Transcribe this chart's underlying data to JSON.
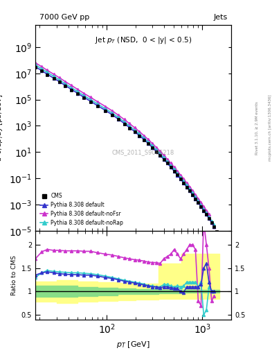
{
  "title_left": "7000 GeV pp",
  "title_right": "Jets",
  "main_title": "Jet p$_T$ (NSD,  0 < |y| < 0.5)",
  "ylabel_main": "d²σ/dp_T dy [pb/GeV]",
  "ylabel_ratio": "Ratio to CMS",
  "xlabel": "p$_T$ [GeV]",
  "watermark": "CMS_2011_S9086218",
  "right_label": "Rivet 3.1.10, ≥ 2.9M events",
  "right_label2": "mcplots.cern.ch [arXiv:1306.3436]",
  "cms_pt": [
    18,
    21,
    24,
    28,
    32,
    37,
    43,
    50,
    58,
    68,
    80,
    97,
    114,
    133,
    153,
    174,
    196,
    220,
    245,
    272,
    300,
    330,
    362,
    395,
    430,
    468,
    507,
    548,
    592,
    638,
    686,
    737,
    790,
    846,
    905,
    967,
    1032,
    1101,
    1172,
    1248,
    1327,
    1410,
    1497
  ],
  "cms_vals": [
    30000000.0,
    15000000.0,
    8000000.0,
    4000000.0,
    2200000.0,
    1100000.0,
    550000.0,
    280000.0,
    140000.0,
    70000.0,
    33000.0,
    14000.0,
    6500,
    3000,
    1400,
    680,
    340,
    170,
    85,
    43,
    22,
    11,
    5.5,
    2.8,
    1.4,
    0.7,
    0.35,
    0.18,
    0.09,
    0.045,
    0.022,
    0.011,
    0.0055,
    0.0028,
    0.0014,
    0.0007,
    0.00035,
    0.000175,
    8.5e-05,
    4e-05,
    2e-05,
    9e-06,
    4e-06
  ],
  "py_pt": [
    18,
    21,
    24,
    28,
    32,
    37,
    43,
    50,
    58,
    68,
    80,
    97,
    114,
    133,
    153,
    174,
    196,
    220,
    245,
    272,
    300,
    330,
    362,
    395,
    430,
    468,
    507,
    548,
    592,
    638,
    686,
    737,
    790,
    846,
    905,
    967,
    1032,
    1101,
    1172,
    1248,
    1327
  ],
  "py_vals": [
    32000000.0,
    16000000.0,
    8500000.0,
    4300000.0,
    2350000.0,
    1180000.0,
    590000.0,
    295000.0,
    148000.0,
    74000.0,
    35000.0,
    15000.0,
    7000,
    3200,
    1500,
    720,
    360,
    180,
    90,
    45,
    22.5,
    11.2,
    5.6,
    2.8,
    1.4,
    0.7,
    0.35,
    0.175,
    0.088,
    0.044,
    0.022,
    0.011,
    0.0055,
    0.0028,
    0.0014,
    0.0007,
    0.00035,
    0.000175,
    8.5e-05,
    4.2e-05,
    2.1e-05
  ],
  "py_color": "#3333cc",
  "py_nofsr_pt": [
    18,
    21,
    24,
    28,
    32,
    37,
    43,
    50,
    58,
    68,
    80,
    97,
    114,
    133,
    153,
    174,
    196,
    220,
    245,
    272,
    300,
    330,
    362,
    395,
    430,
    468,
    507,
    548,
    592,
    638,
    686,
    737,
    790,
    846,
    905,
    967,
    1032,
    1101,
    1172,
    1248,
    1327
  ],
  "py_nofsr_vals": [
    64000000.0,
    32000000.0,
    17000000.0,
    8600000.0,
    4700000.0,
    2360000.0,
    1180000.0,
    590000.0,
    296000.0,
    148000.0,
    70000.0,
    30000.0,
    14000.0,
    6400,
    3000,
    1440,
    720,
    360,
    180,
    90,
    45,
    22.5,
    11.2,
    5.6,
    2.8,
    1.4,
    0.7,
    0.35,
    0.175,
    0.088,
    0.044,
    0.022,
    0.011,
    0.0055,
    0.0028,
    0.0014,
    0.0007,
    0.00035,
    0.000175,
    4.2e-05,
    2.1e-05
  ],
  "py_nofsr_color": "#cc33cc",
  "py_norap_pt": [
    18,
    21,
    24,
    28,
    32,
    37,
    43,
    50,
    58,
    68,
    80,
    97,
    114,
    133,
    153,
    174,
    196,
    220,
    245,
    272,
    300,
    330,
    362,
    395,
    430,
    468,
    507,
    548,
    592,
    638,
    686,
    737,
    790,
    846,
    905,
    967,
    1032,
    1101,
    1172,
    1248,
    1327
  ],
  "py_norap_vals": [
    45000000.0,
    22000000.0,
    12000000.0,
    6000000.0,
    3200000.0,
    1600000.0,
    800000.0,
    400000.0,
    200000.0,
    100000.0,
    48000.0,
    20000.0,
    9500,
    4300,
    2000,
    960,
    480,
    240,
    120,
    60,
    30,
    15,
    7.5,
    3.75,
    1.875,
    0.94,
    0.47,
    0.235,
    0.118,
    0.059,
    0.03,
    0.015,
    0.0075,
    0.0038,
    0.0019,
    0.0009,
    0.00045,
    0.000225,
    0.00011,
    5.5e-05,
    2.75e-05
  ],
  "py_norap_color": "#33cccc",
  "ratio_py": [
    1.35,
    1.4,
    1.42,
    1.4,
    1.38,
    1.37,
    1.36,
    1.36,
    1.35,
    1.35,
    1.33,
    1.3,
    1.28,
    1.25,
    1.22,
    1.2,
    1.18,
    1.16,
    1.14,
    1.12,
    1.1,
    1.1,
    1.08,
    1.1,
    1.1,
    1.08,
    1.07,
    1.06,
    1.0,
    0.98,
    1.1,
    1.1,
    1.1,
    1.1,
    1.1,
    1.15,
    1.5,
    1.6,
    1.2,
    1.0,
    1.0
  ],
  "ratio_py_nofsr": [
    1.7,
    1.85,
    1.9,
    1.88,
    1.88,
    1.87,
    1.87,
    1.87,
    1.86,
    1.86,
    1.83,
    1.8,
    1.78,
    1.75,
    1.72,
    1.7,
    1.68,
    1.67,
    1.65,
    1.63,
    1.62,
    1.62,
    1.6,
    1.7,
    1.75,
    1.8,
    1.9,
    1.8,
    1.7,
    1.8,
    1.9,
    2.0,
    2.0,
    1.9,
    0.8,
    0.7,
    2.5,
    2.0,
    1.5,
    0.8,
    0.9
  ],
  "ratio_py_norap": [
    1.3,
    1.4,
    1.45,
    1.43,
    1.42,
    1.41,
    1.4,
    1.4,
    1.39,
    1.38,
    1.36,
    1.33,
    1.3,
    1.27,
    1.24,
    1.22,
    1.2,
    1.18,
    1.16,
    1.13,
    1.12,
    1.1,
    1.1,
    1.15,
    1.15,
    1.12,
    1.1,
    1.12,
    1.1,
    1.12,
    1.2,
    1.2,
    1.2,
    1.2,
    1.1,
    1.2,
    0.5,
    0.6,
    1.1,
    1.0,
    1.0
  ],
  "band_inner_pt": [
    18,
    30,
    50,
    80,
    130,
    200,
    350,
    600,
    1000,
    1500
  ],
  "band_inner_lo": [
    0.88,
    0.88,
    0.9,
    0.92,
    0.94,
    0.95,
    0.96,
    0.97,
    0.97,
    0.97
  ],
  "band_inner_hi": [
    1.12,
    1.12,
    1.1,
    1.08,
    1.06,
    1.05,
    1.04,
    1.03,
    1.03,
    1.03
  ],
  "band_outer_lo": [
    0.78,
    0.76,
    0.78,
    0.8,
    0.82,
    0.83,
    0.84,
    0.84,
    0.84,
    0.84
  ],
  "band_outer_hi": [
    1.22,
    1.24,
    1.22,
    1.2,
    1.18,
    1.17,
    1.6,
    1.8,
    1.8,
    1.8
  ]
}
